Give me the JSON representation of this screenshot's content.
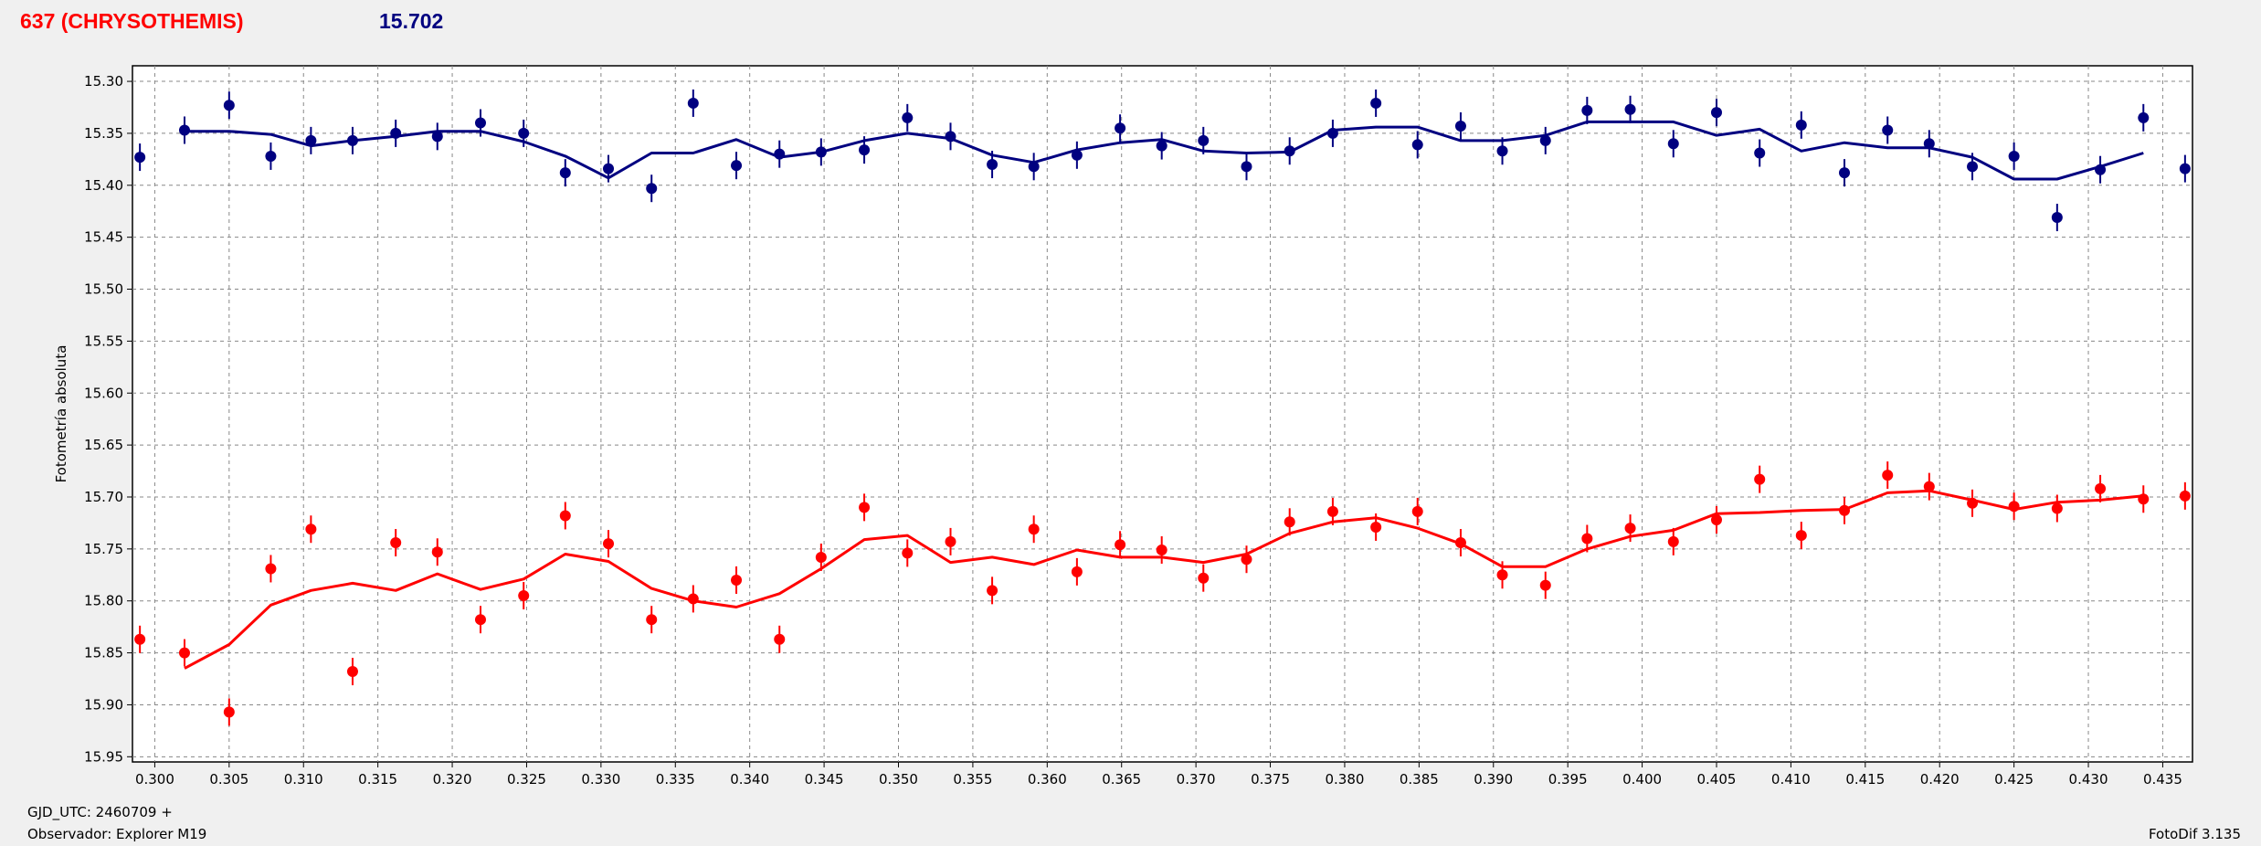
{
  "header": {
    "object_name": "637 (CHRYSOTHEMIS)",
    "magnitude": "15.702"
  },
  "footer": {
    "gjd": "GJD_UTC: 2460709 +",
    "observer": "Observador: Explorer M19",
    "software": "FotoDif 3.135"
  },
  "colors": {
    "series_red": "#ff0000",
    "series_blue": "#000080",
    "background": "#f0f0f0",
    "plot_bg": "#ffffff"
  },
  "chart_data": {
    "type": "scatter",
    "ylabel": "Fotometría absoluta",
    "xlabel": "",
    "xlim": [
      0.2985,
      0.437
    ],
    "ylim": [
      15.285,
      15.955
    ],
    "y_inverted": true,
    "grid": true,
    "x_ticks": [
      "0.300",
      "0.305",
      "0.310",
      "0.315",
      "0.320",
      "0.325",
      "0.330",
      "0.335",
      "0.340",
      "0.345",
      "0.350",
      "0.355",
      "0.360",
      "0.365",
      "0.370",
      "0.375",
      "0.380",
      "0.385",
      "0.390",
      "0.395",
      "0.400",
      "0.405",
      "0.410",
      "0.415",
      "0.420",
      "0.425",
      "0.430",
      "0.435"
    ],
    "y_ticks": [
      "15.30",
      "15.35",
      "15.40",
      "15.45",
      "15.50",
      "15.55",
      "15.60",
      "15.65",
      "15.70",
      "15.75",
      "15.80",
      "15.85",
      "15.90",
      "15.95"
    ],
    "series": [
      {
        "color": "#000080",
        "points": [
          [
            0.299,
            15.373
          ],
          [
            0.302,
            15.347
          ],
          [
            0.305,
            15.323
          ],
          [
            0.3078,
            15.372
          ],
          [
            0.3105,
            15.357
          ],
          [
            0.3133,
            15.357
          ],
          [
            0.3162,
            15.35
          ],
          [
            0.319,
            15.353
          ],
          [
            0.3219,
            15.34
          ],
          [
            0.3248,
            15.35
          ],
          [
            0.3276,
            15.388
          ],
          [
            0.3305,
            15.384
          ],
          [
            0.3334,
            15.403
          ],
          [
            0.3362,
            15.321
          ],
          [
            0.3391,
            15.381
          ],
          [
            0.342,
            15.37
          ],
          [
            0.3448,
            15.368
          ],
          [
            0.3477,
            15.366
          ],
          [
            0.3506,
            15.335
          ],
          [
            0.3535,
            15.353
          ],
          [
            0.3563,
            15.38
          ],
          [
            0.3591,
            15.382
          ],
          [
            0.362,
            15.371
          ],
          [
            0.3649,
            15.345
          ],
          [
            0.3677,
            15.362
          ],
          [
            0.3705,
            15.357
          ],
          [
            0.3734,
            15.382
          ],
          [
            0.3763,
            15.367
          ],
          [
            0.3792,
            15.35
          ],
          [
            0.3821,
            15.321
          ],
          [
            0.3849,
            15.361
          ],
          [
            0.3878,
            15.343
          ],
          [
            0.3906,
            15.367
          ],
          [
            0.3935,
            15.357
          ],
          [
            0.3963,
            15.328
          ],
          [
            0.3992,
            15.327
          ],
          [
            0.4021,
            15.36
          ],
          [
            0.405,
            15.33
          ],
          [
            0.4079,
            15.369
          ],
          [
            0.4107,
            15.342
          ],
          [
            0.4136,
            15.388
          ],
          [
            0.4165,
            15.347
          ],
          [
            0.4193,
            15.36
          ],
          [
            0.4222,
            15.382
          ],
          [
            0.425,
            15.372
          ],
          [
            0.4279,
            15.431
          ],
          [
            0.4308,
            15.385
          ],
          [
            0.4337,
            15.335
          ],
          [
            0.4365,
            15.384
          ]
        ],
        "fit": [
          [
            0.302,
            15.348
          ],
          [
            0.305,
            15.348
          ],
          [
            0.3078,
            15.351
          ],
          [
            0.3105,
            15.362
          ],
          [
            0.3133,
            15.357
          ],
          [
            0.3162,
            15.353
          ],
          [
            0.319,
            15.348
          ],
          [
            0.3219,
            15.348
          ],
          [
            0.3248,
            15.358
          ],
          [
            0.3276,
            15.372
          ],
          [
            0.3305,
            15.393
          ],
          [
            0.3334,
            15.369
          ],
          [
            0.3362,
            15.369
          ],
          [
            0.3391,
            15.356
          ],
          [
            0.342,
            15.373
          ],
          [
            0.3448,
            15.368
          ],
          [
            0.3477,
            15.357
          ],
          [
            0.3506,
            15.35
          ],
          [
            0.3535,
            15.355
          ],
          [
            0.3563,
            15.371
          ],
          [
            0.3591,
            15.378
          ],
          [
            0.362,
            15.366
          ],
          [
            0.3649,
            15.359
          ],
          [
            0.3677,
            15.356
          ],
          [
            0.3705,
            15.367
          ],
          [
            0.3734,
            15.369
          ],
          [
            0.3763,
            15.368
          ],
          [
            0.3792,
            15.347
          ],
          [
            0.3821,
            15.344
          ],
          [
            0.3849,
            15.344
          ],
          [
            0.3878,
            15.357
          ],
          [
            0.3906,
            15.357
          ],
          [
            0.3935,
            15.352
          ],
          [
            0.3963,
            15.339
          ],
          [
            0.3992,
            15.339
          ],
          [
            0.4021,
            15.339
          ],
          [
            0.405,
            15.352
          ],
          [
            0.4079,
            15.346
          ],
          [
            0.4107,
            15.367
          ],
          [
            0.4136,
            15.359
          ],
          [
            0.4165,
            15.364
          ],
          [
            0.4193,
            15.364
          ],
          [
            0.4222,
            15.373
          ],
          [
            0.425,
            15.394
          ],
          [
            0.4279,
            15.394
          ],
          [
            0.4308,
            15.382
          ],
          [
            0.4337,
            15.369
          ]
        ]
      },
      {
        "color": "#ff0000",
        "points": [
          [
            0.299,
            15.837
          ],
          [
            0.302,
            15.85
          ],
          [
            0.305,
            15.907
          ],
          [
            0.3078,
            15.769
          ],
          [
            0.3105,
            15.731
          ],
          [
            0.3133,
            15.868
          ],
          [
            0.3162,
            15.744
          ],
          [
            0.319,
            15.753
          ],
          [
            0.3219,
            15.818
          ],
          [
            0.3248,
            15.795
          ],
          [
            0.3276,
            15.718
          ],
          [
            0.3305,
            15.745
          ],
          [
            0.3334,
            15.818
          ],
          [
            0.3362,
            15.798
          ],
          [
            0.3391,
            15.78
          ],
          [
            0.342,
            15.837
          ],
          [
            0.3448,
            15.758
          ],
          [
            0.3477,
            15.71
          ],
          [
            0.3506,
            15.754
          ],
          [
            0.3535,
            15.743
          ],
          [
            0.3563,
            15.79
          ],
          [
            0.3591,
            15.731
          ],
          [
            0.362,
            15.772
          ],
          [
            0.3649,
            15.746
          ],
          [
            0.3677,
            15.751
          ],
          [
            0.3705,
            15.778
          ],
          [
            0.3734,
            15.76
          ],
          [
            0.3763,
            15.724
          ],
          [
            0.3792,
            15.714
          ],
          [
            0.3821,
            15.729
          ],
          [
            0.3849,
            15.714
          ],
          [
            0.3878,
            15.744
          ],
          [
            0.3906,
            15.775
          ],
          [
            0.3935,
            15.785
          ],
          [
            0.3963,
            15.74
          ],
          [
            0.3992,
            15.73
          ],
          [
            0.4021,
            15.743
          ],
          [
            0.405,
            15.722
          ],
          [
            0.4079,
            15.683
          ],
          [
            0.4107,
            15.737
          ],
          [
            0.4136,
            15.713
          ],
          [
            0.4165,
            15.679
          ],
          [
            0.4193,
            15.69
          ],
          [
            0.4222,
            15.706
          ],
          [
            0.425,
            15.709
          ],
          [
            0.4279,
            15.711
          ],
          [
            0.4308,
            15.692
          ],
          [
            0.4337,
            15.702
          ],
          [
            0.4365,
            15.699
          ]
        ],
        "fit": [
          [
            0.302,
            15.865
          ],
          [
            0.305,
            15.842
          ],
          [
            0.3078,
            15.804
          ],
          [
            0.3105,
            15.79
          ],
          [
            0.3133,
            15.783
          ],
          [
            0.3162,
            15.79
          ],
          [
            0.319,
            15.774
          ],
          [
            0.3219,
            15.789
          ],
          [
            0.3248,
            15.779
          ],
          [
            0.3276,
            15.755
          ],
          [
            0.3305,
            15.762
          ],
          [
            0.3334,
            15.788
          ],
          [
            0.3362,
            15.8
          ],
          [
            0.3391,
            15.806
          ],
          [
            0.342,
            15.793
          ],
          [
            0.3448,
            15.769
          ],
          [
            0.3477,
            15.741
          ],
          [
            0.3506,
            15.737
          ],
          [
            0.3535,
            15.763
          ],
          [
            0.3563,
            15.758
          ],
          [
            0.3591,
            15.765
          ],
          [
            0.362,
            15.751
          ],
          [
            0.3649,
            15.758
          ],
          [
            0.3677,
            15.758
          ],
          [
            0.3705,
            15.763
          ],
          [
            0.3734,
            15.755
          ],
          [
            0.3763,
            15.735
          ],
          [
            0.3792,
            15.724
          ],
          [
            0.3821,
            15.72
          ],
          [
            0.3849,
            15.73
          ],
          [
            0.3878,
            15.745
          ],
          [
            0.3906,
            15.767
          ],
          [
            0.3935,
            15.767
          ],
          [
            0.3963,
            15.75
          ],
          [
            0.3992,
            15.738
          ],
          [
            0.4021,
            15.732
          ],
          [
            0.405,
            15.716
          ],
          [
            0.4079,
            15.715
          ],
          [
            0.4107,
            15.713
          ],
          [
            0.4136,
            15.712
          ],
          [
            0.4165,
            15.696
          ],
          [
            0.4193,
            15.694
          ],
          [
            0.4222,
            15.703
          ],
          [
            0.425,
            15.712
          ],
          [
            0.4279,
            15.705
          ],
          [
            0.4308,
            15.703
          ],
          [
            0.4337,
            15.699
          ]
        ]
      }
    ]
  }
}
